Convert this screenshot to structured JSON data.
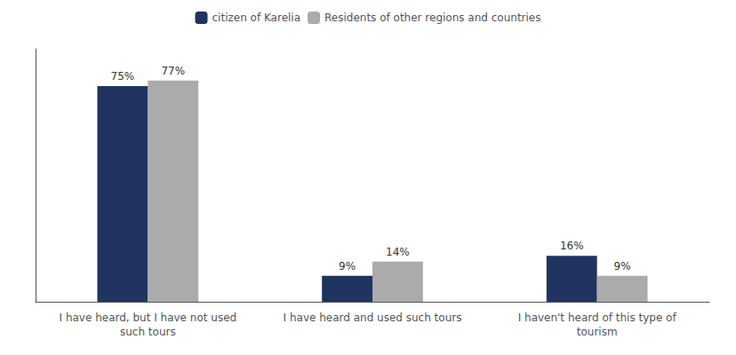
{
  "chart_data": {
    "type": "bar",
    "categories": [
      "I have heard, but I have not used\nsuch tours",
      "I have heard and used such tours",
      "I haven't heard of this type of\ntourism"
    ],
    "series": [
      {
        "name": "citizen of Karelia",
        "color": "#1F3461",
        "values": [
          75,
          9,
          16
        ],
        "value_labels": [
          "75%",
          "9%",
          "16%"
        ]
      },
      {
        "name": "Residents of other regions and countries",
        "color": "#ABABAB",
        "values": [
          77,
          14,
          9
        ],
        "value_labels": [
          "77%",
          "14%",
          "9%"
        ]
      }
    ],
    "ylim": [
      0,
      88
    ],
    "grid": false,
    "legend": "top",
    "data_labels": true,
    "tick_labels": "x"
  }
}
